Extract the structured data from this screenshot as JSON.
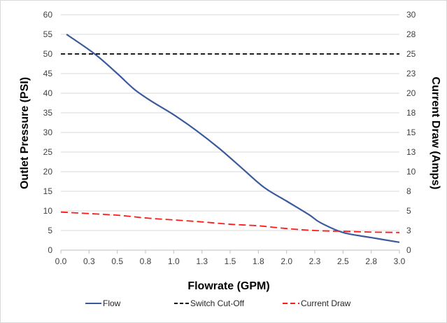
{
  "chart_data": {
    "type": "line",
    "xlabel": "Flowrate (GPM)",
    "ylabel": "Outlet Pressure (PSI)",
    "y2label": "Current Draw (Amps)",
    "xlim": [
      0.0,
      3.0
    ],
    "ylim": [
      0,
      60
    ],
    "y2lim": [
      0,
      30
    ],
    "x_ticks": [
      "0.0",
      "0.3",
      "0.5",
      "0.8",
      "1.0",
      "1.3",
      "1.5",
      "1.8",
      "2.0",
      "2.3",
      "2.5",
      "2.8",
      "3.0"
    ],
    "y_ticks": [
      "0",
      "5",
      "10",
      "15",
      "20",
      "25",
      "30",
      "35",
      "40",
      "45",
      "50",
      "55",
      "60"
    ],
    "y2_ticks": [
      "0",
      "3",
      "5",
      "8",
      "10",
      "13",
      "15",
      "18",
      "20",
      "23",
      "25",
      "28",
      "30"
    ],
    "grid": true,
    "legend_position": "bottom",
    "series": [
      {
        "name": "Flow",
        "axis": "left",
        "color": "#3a5a9b",
        "dash": "solid",
        "points": [
          [
            0.05,
            55
          ],
          [
            0.3,
            50
          ],
          [
            0.5,
            45
          ],
          [
            0.65,
            41
          ],
          [
            0.8,
            38
          ],
          [
            1.0,
            34.5
          ],
          [
            1.2,
            30.5
          ],
          [
            1.4,
            26
          ],
          [
            1.6,
            21
          ],
          [
            1.8,
            16
          ],
          [
            2.0,
            12.5
          ],
          [
            2.2,
            9
          ],
          [
            2.3,
            7
          ],
          [
            2.5,
            4.5
          ],
          [
            2.75,
            3.2
          ],
          [
            3.0,
            2
          ]
        ]
      },
      {
        "name": "Switch Cut-Off",
        "axis": "left",
        "color": "#000000",
        "dash": "dashed",
        "points": [
          [
            0.0,
            50
          ],
          [
            3.0,
            50
          ]
        ]
      },
      {
        "name": "Current Draw",
        "axis": "left",
        "color": "#ff1a1a",
        "dash": "dashed",
        "points": [
          [
            0.0,
            9.7
          ],
          [
            0.5,
            8.9
          ],
          [
            0.75,
            8.2
          ],
          [
            1.0,
            7.7
          ],
          [
            1.25,
            7.2
          ],
          [
            1.5,
            6.6
          ],
          [
            1.75,
            6.2
          ],
          [
            2.0,
            5.5
          ],
          [
            2.25,
            5.0
          ],
          [
            2.5,
            4.8
          ],
          [
            2.75,
            4.6
          ],
          [
            3.0,
            4.5
          ]
        ]
      }
    ]
  }
}
